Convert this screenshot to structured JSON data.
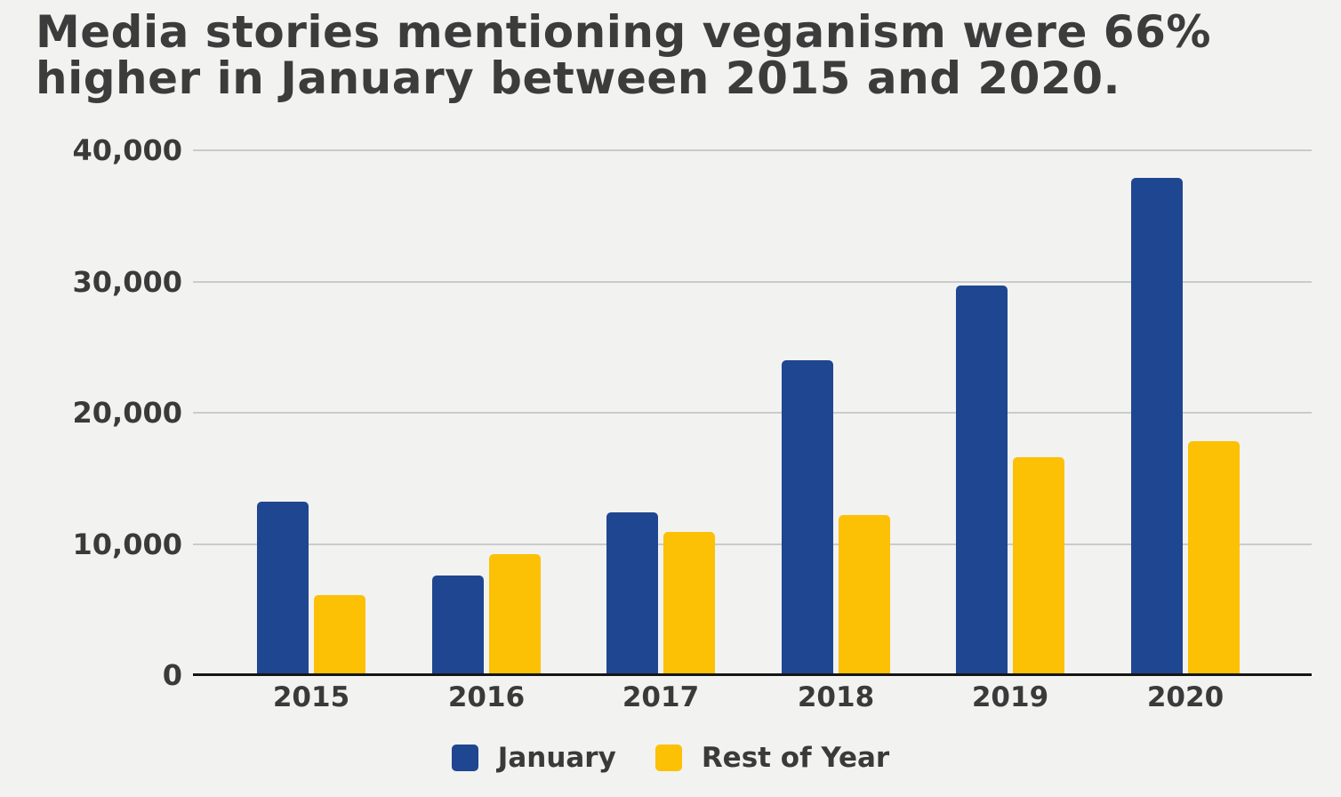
{
  "title": {
    "line1": "Media stories mentioning veganism were 66%",
    "line2": "higher in January between 2015 and 2020."
  },
  "chart_data": {
    "type": "bar",
    "title": "Media stories mentioning veganism were 66% higher in January between 2015 and 2020.",
    "categories": [
      "2015",
      "2016",
      "2017",
      "2018",
      "2019",
      "2020"
    ],
    "series": [
      {
        "name": "January",
        "color": "#1F4690",
        "values": [
          13200,
          7600,
          12400,
          24000,
          29700,
          37900
        ]
      },
      {
        "name": "Rest of Year",
        "color": "#FCC005",
        "values": [
          6100,
          9200,
          10900,
          12200,
          16600,
          17800
        ]
      }
    ],
    "xlabel": "",
    "ylabel": "",
    "ylim": [
      0,
      40000
    ],
    "yticks": [
      0,
      10000,
      20000,
      30000,
      40000
    ],
    "ytick_labels": [
      "0",
      "10,000",
      "20,000",
      "30,000",
      "40,000"
    ],
    "grid": true,
    "legend_position": "bottom",
    "background_color": "#f2f2f1",
    "grid_color": "#c9cbcd",
    "axis_color": "#161616",
    "text_color": "#3a3a3a"
  }
}
